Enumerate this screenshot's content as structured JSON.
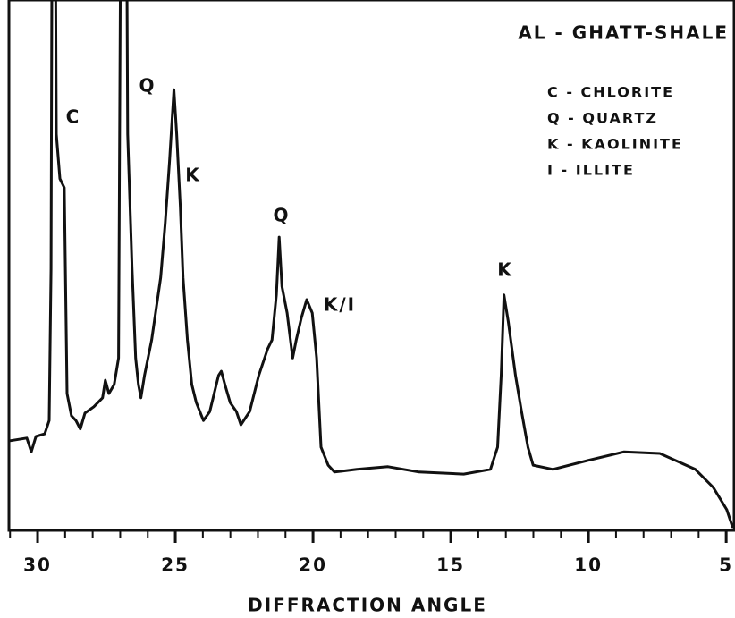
{
  "chart_data": {
    "type": "line",
    "title": "AL - GHATT-SHALE",
    "x_label": "DIFFRACTION ANGLE",
    "legend_lines": [
      "C - CHLORITE",
      "Q - QUARTZ",
      "K - KAOLINITE",
      "I - ILLITE"
    ],
    "annotations": [
      "C",
      "Q",
      "K",
      "Q",
      "K/I",
      "K"
    ],
    "color": "#111111",
    "xlim": [
      31.04,
      4.68
    ],
    "ylim": [
      0,
      100
    ],
    "xticks": [
      30,
      25,
      20,
      15,
      10,
      5
    ],
    "xminorticks": [
      31,
      29,
      28,
      27,
      26,
      24,
      23,
      22,
      21,
      19,
      18,
      17,
      16,
      14,
      13,
      12,
      11,
      9,
      8,
      7,
      6
    ],
    "x": [
      31.0,
      30.39,
      30.23,
      30.06,
      29.74,
      29.58,
      29.51,
      29.48,
      29.35,
      29.32,
      29.19,
      29.03,
      28.93,
      28.77,
      28.61,
      28.45,
      28.28,
      27.96,
      27.64,
      27.54,
      27.41,
      27.22,
      27.06,
      26.99,
      26.76,
      26.73,
      26.57,
      26.44,
      26.34,
      26.25,
      26.12,
      25.86,
      25.53,
      25.37,
      25.21,
      25.05,
      24.95,
      24.82,
      24.72,
      24.56,
      24.4,
      24.24,
      23.98,
      23.75,
      23.59,
      23.43,
      23.33,
      23.2,
      23.01,
      22.78,
      22.62,
      22.3,
      21.97,
      21.65,
      21.49,
      21.33,
      21.23,
      21.13,
      20.94,
      20.74,
      20.61,
      20.42,
      20.23,
      20.03,
      19.87,
      19.71,
      19.45,
      19.22,
      18.41,
      17.28,
      16.15,
      14.53,
      13.56,
      13.3,
      13.17,
      13.07,
      12.91,
      12.65,
      12.43,
      12.2,
      12.01,
      11.29,
      10.0,
      8.71,
      7.41,
      6.12,
      5.47,
      4.98,
      4.76
    ],
    "values": [
      16.9,
      17.4,
      14.8,
      17.7,
      18.2,
      20.7,
      49.4,
      110,
      110,
      74.7,
      66.3,
      64.6,
      25.8,
      21.6,
      20.7,
      19.1,
      22.1,
      23.3,
      25.0,
      28.3,
      25.8,
      27.5,
      32.5,
      110,
      110,
      74.7,
      49.4,
      32.5,
      27.5,
      25.0,
      29.2,
      35.9,
      47.7,
      57.8,
      69.6,
      83.1,
      74.7,
      61.2,
      47.7,
      35.9,
      27.5,
      24.1,
      20.7,
      22.4,
      25.8,
      29.2,
      30.0,
      27.5,
      24.1,
      22.4,
      19.9,
      22.4,
      29.2,
      34.2,
      35.9,
      44.4,
      55.3,
      46.0,
      41.0,
      32.5,
      35.9,
      40.1,
      43.5,
      41.0,
      32.5,
      15.7,
      12.3,
      11.0,
      11.5,
      12.0,
      11.0,
      10.6,
      11.5,
      15.7,
      29.2,
      44.4,
      39.3,
      29.2,
      22.4,
      15.7,
      12.3,
      11.5,
      13.2,
      14.8,
      14.5,
      11.5,
      8.1,
      3.9,
      0.5
    ]
  }
}
